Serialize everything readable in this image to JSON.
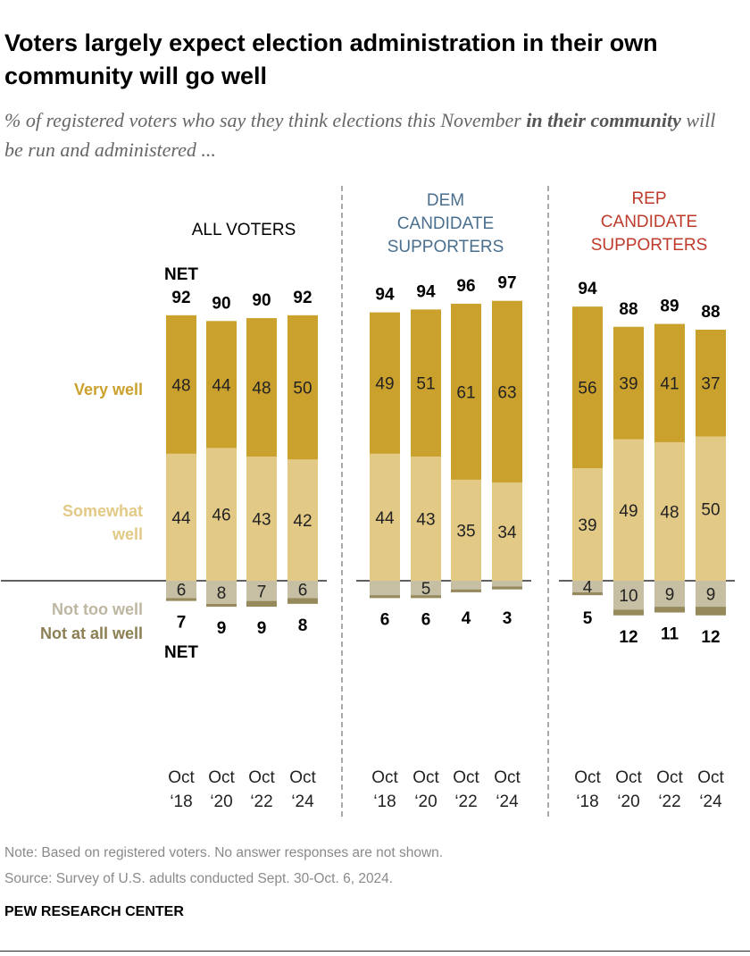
{
  "title": "Voters largely expect election administration in their own community will go well",
  "subtitle_pre": "% of registered voters who say they think elections this November ",
  "subtitle_bold": "in their community",
  "subtitle_post": " will be run and administered ...",
  "legend": {
    "very": "Very well",
    "somewhat": "Somewhat well",
    "nottoo": "Not too well",
    "notatall": "Not at all well",
    "net": "NET"
  },
  "note": "Note: Based on registered voters. No answer responses are not shown.",
  "source": "Source: Survey of U.S. adults conducted Sept. 30-Oct. 6, 2024.",
  "brand": "PEW RESEARCH CENTER",
  "colors": {
    "very": "#CBA12E",
    "somewhat": "#E3C986",
    "nottoo": "#C7BFA3",
    "notatall": "#968A5C",
    "dem": "#4A6F8E",
    "rep": "#BE3A2A"
  },
  "chart_data": {
    "type": "bar",
    "stacked": "diverging",
    "categories": [
      "Oct '18",
      "Oct '20",
      "Oct '22",
      "Oct '24"
    ],
    "panels": [
      {
        "name": "ALL VOTERS",
        "net_positive": [
          92,
          90,
          90,
          92
        ],
        "net_negative": [
          7,
          9,
          9,
          8
        ],
        "series": [
          {
            "name": "Very well",
            "values": [
              48,
              44,
              48,
              50
            ]
          },
          {
            "name": "Somewhat well",
            "values": [
              44,
              46,
              43,
              42
            ]
          },
          {
            "name": "Not too well",
            "values": [
              6,
              8,
              7,
              6
            ]
          },
          {
            "name": "Not at all well",
            "values": [
              1,
              1,
              2,
              2
            ]
          }
        ]
      },
      {
        "name": "DEM CANDIDATE SUPPORTERS",
        "net_positive": [
          94,
          94,
          96,
          97
        ],
        "net_negative": [
          6,
          6,
          4,
          3
        ],
        "series": [
          {
            "name": "Very well",
            "values": [
              49,
              51,
              61,
              63
            ]
          },
          {
            "name": "Somewhat well",
            "values": [
              44,
              43,
              35,
              34
            ]
          },
          {
            "name": "Not too well",
            "values": [
              5,
              5,
              3,
              2
            ]
          },
          {
            "name": "Not at all well",
            "values": [
              1,
              1,
              1,
              1
            ]
          }
        ],
        "labeled_nottoo": [
          false,
          true,
          false,
          false
        ]
      },
      {
        "name": "REP CANDIDATE SUPPORTERS",
        "net_positive": [
          94,
          88,
          89,
          88
        ],
        "net_negative": [
          5,
          12,
          11,
          12
        ],
        "series": [
          {
            "name": "Very well",
            "values": [
              56,
              39,
              41,
              37
            ]
          },
          {
            "name": "Somewhat well",
            "values": [
              39,
              49,
              48,
              50
            ]
          },
          {
            "name": "Not too well",
            "values": [
              4,
              10,
              9,
              9
            ]
          },
          {
            "name": "Not at all well",
            "values": [
              1,
              2,
              2,
              3
            ]
          }
        ]
      }
    ]
  }
}
